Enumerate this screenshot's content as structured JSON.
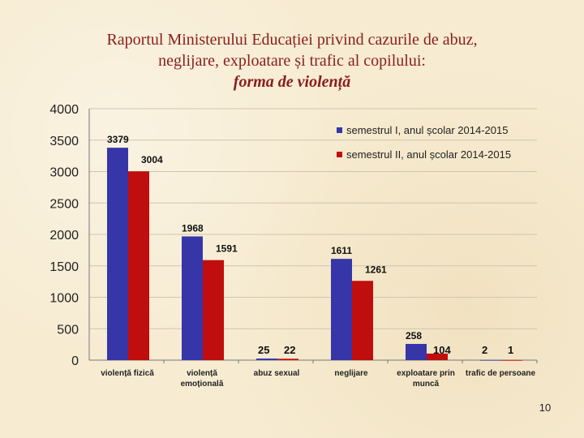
{
  "slide": {
    "title_line1": "Raportul Ministerului Educației privind cazurile de abuz,",
    "title_line2": "neglijare, exploatare și trafic al copilului:",
    "title_line3": "forma de violență",
    "page_number": "10"
  },
  "colors": {
    "series1": "#3636a8",
    "series2": "#c00d0d",
    "title": "#8b1c1c"
  },
  "chart_data": {
    "type": "bar",
    "title": "forma de violență",
    "xlabel": "",
    "ylabel": "",
    "ylim": [
      0,
      4000
    ],
    "yticks": [
      0,
      500,
      1000,
      1500,
      2000,
      2500,
      3000,
      3500,
      4000
    ],
    "grid": true,
    "legend_position": "top-right",
    "categories": [
      [
        "violență fizică"
      ],
      [
        "violență",
        "emoțională"
      ],
      [
        "abuz sexual"
      ],
      [
        "neglijare"
      ],
      [
        "exploatare prin",
        "muncă"
      ],
      [
        "trafic de persoane"
      ]
    ],
    "series": [
      {
        "name": "semestrul I, anul școlar 2014-2015",
        "values": [
          3379,
          1968,
          25,
          1611,
          258,
          2
        ],
        "color": "#3636a8"
      },
      {
        "name": "semestrul II, anul școlar 2014-2015",
        "values": [
          3004,
          1591,
          22,
          1261,
          104,
          1
        ],
        "color": "#c00d0d"
      }
    ]
  }
}
